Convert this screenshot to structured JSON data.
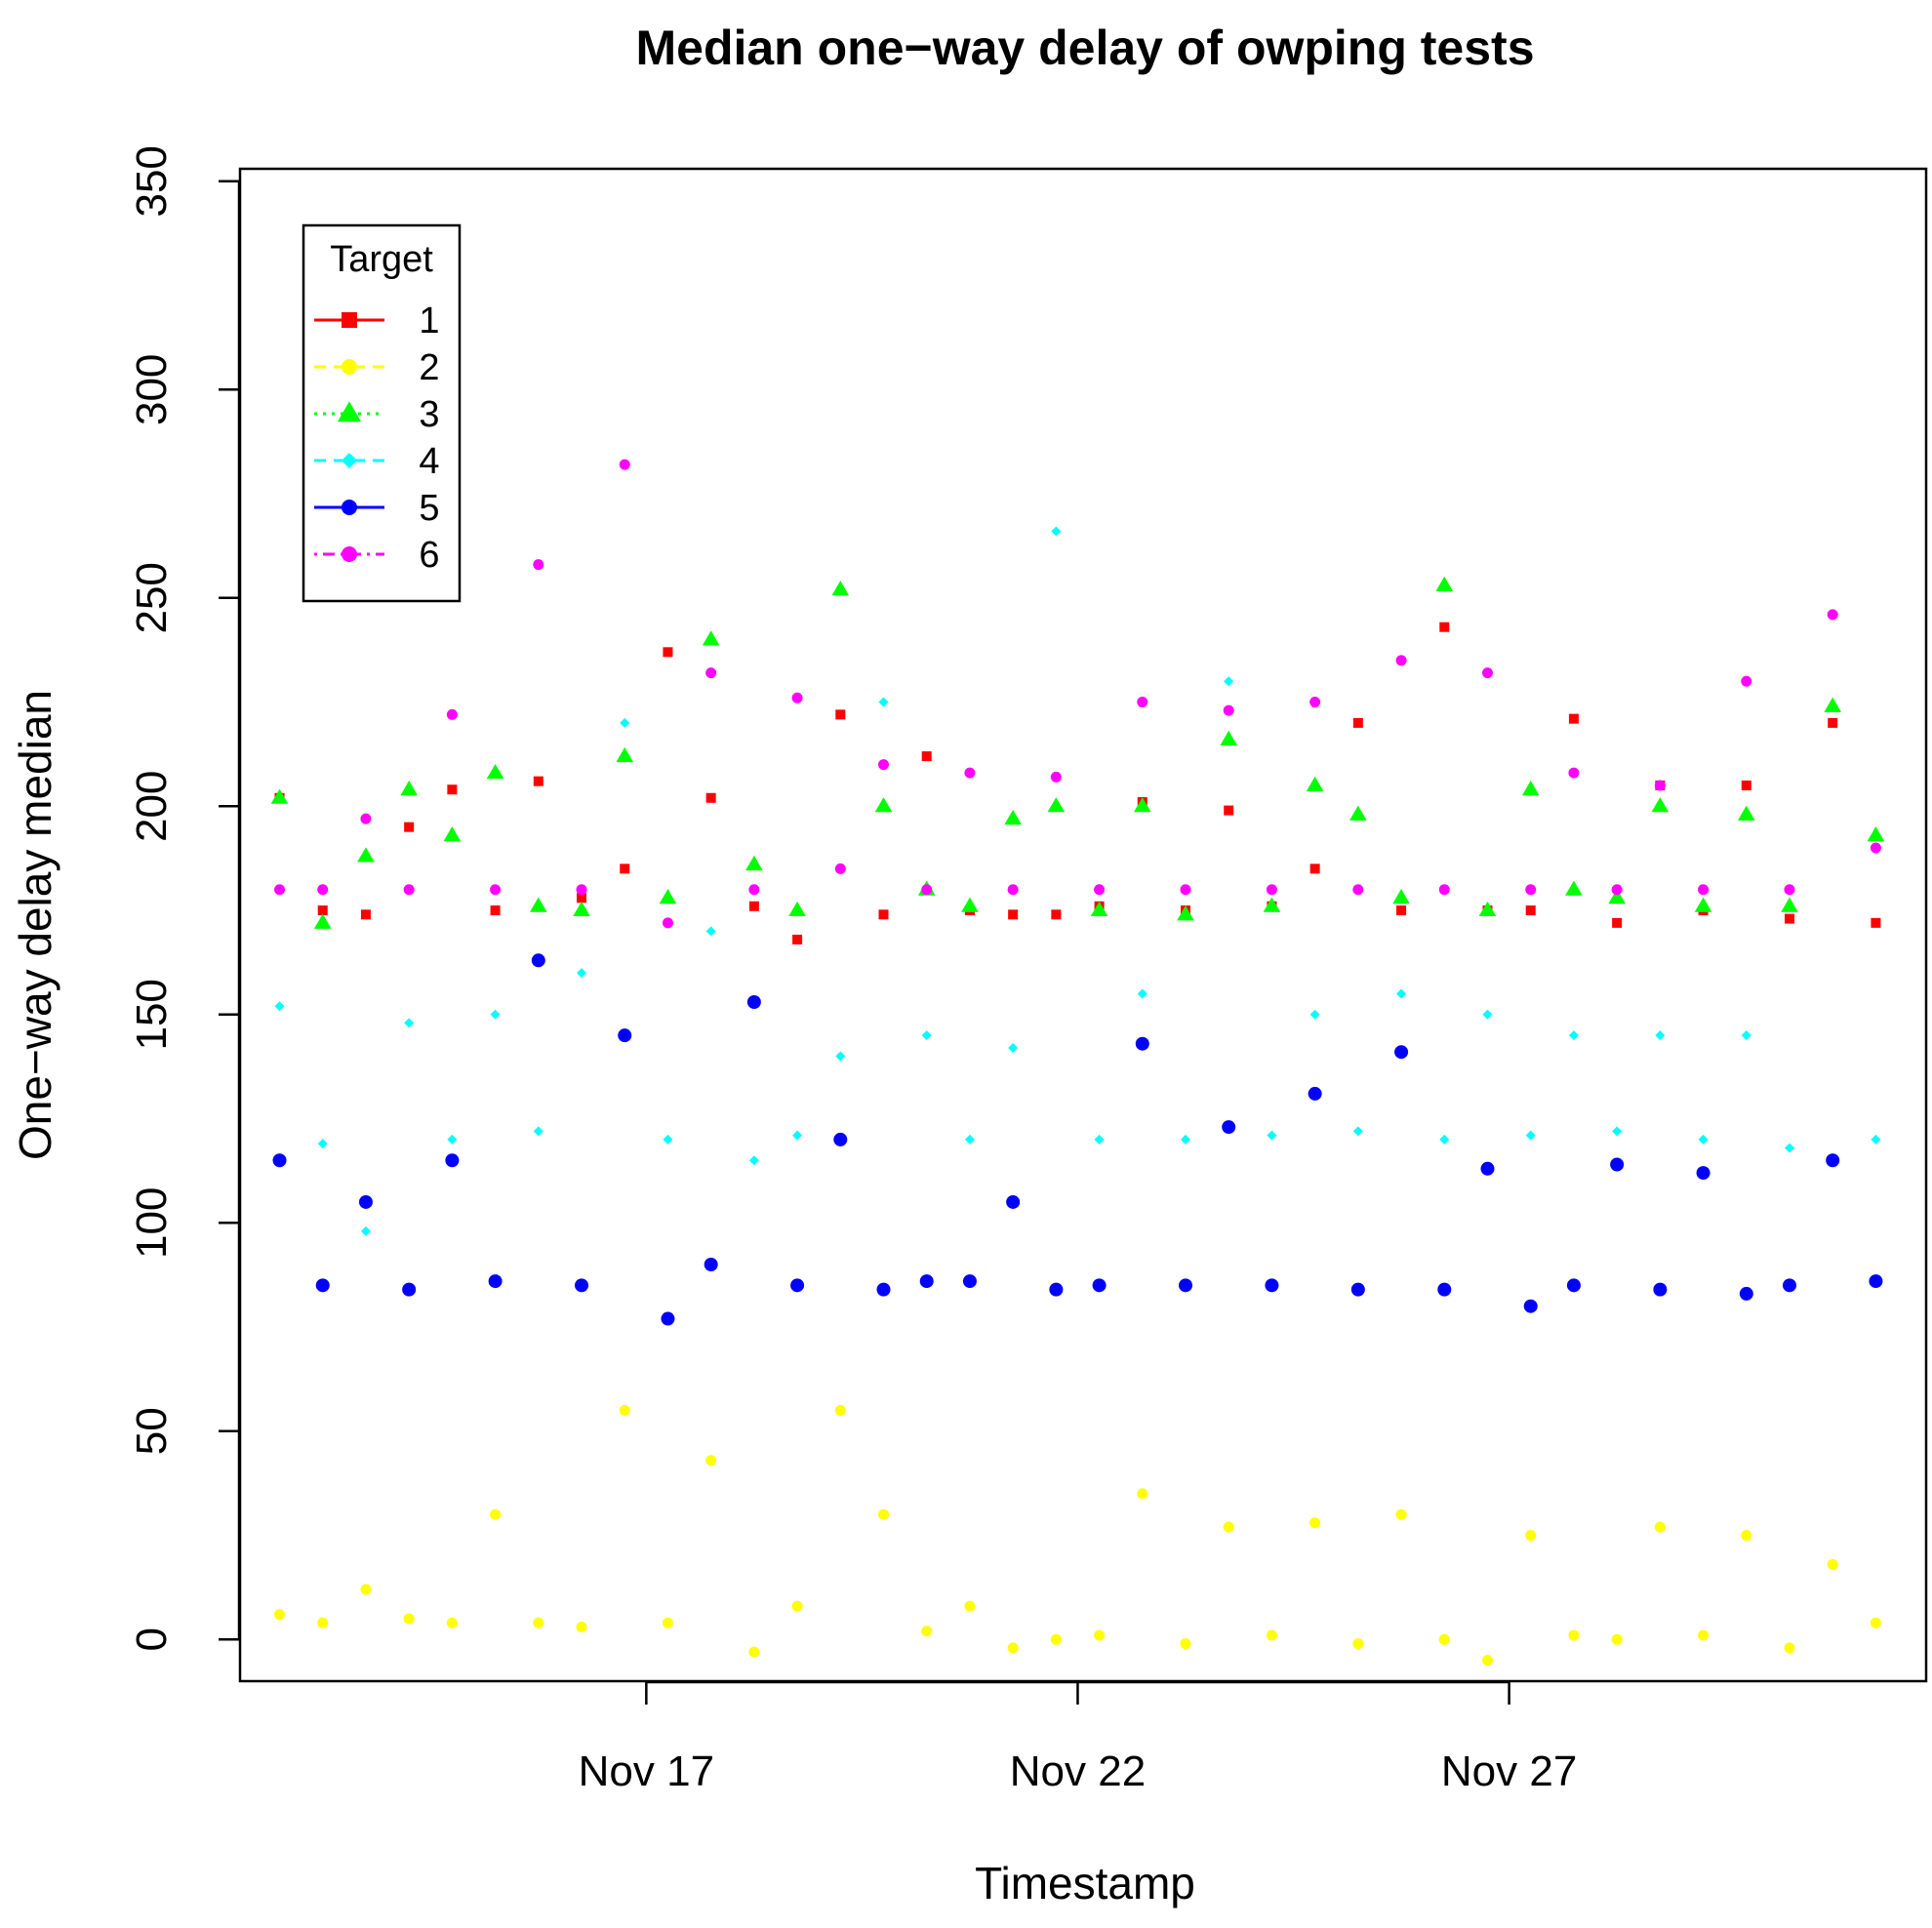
{
  "chart_data": {
    "type": "scatter",
    "title": "Median one−way delay of owping tests",
    "xlabel": "Timestamp",
    "ylabel": "One−way delay median",
    "xlim": [
      "2023-11-12T07:00",
      "2023-12-01T20:00"
    ],
    "ylim": [
      -10,
      353
    ],
    "x_ticks": [
      {
        "date": "2023-11-17",
        "label": "Nov 17"
      },
      {
        "date": "2023-11-22",
        "label": "Nov 22"
      },
      {
        "date": "2023-11-27",
        "label": "Nov 27"
      }
    ],
    "y_ticks": [
      0,
      50,
      100,
      150,
      200,
      250,
      300,
      350
    ],
    "grid": false,
    "legend": {
      "title": "Target",
      "position": "top-left",
      "entries": [
        "1",
        "2",
        "3",
        "4",
        "5",
        "6"
      ]
    },
    "series": [
      {
        "name": "1",
        "color": "#ff0000",
        "marker": "square",
        "line": "solid",
        "x": [
          "2023-11-12T18:00",
          "2023-11-13T06:00",
          "2023-11-13T18:00",
          "2023-11-14T06:00",
          "2023-11-14T18:00",
          "2023-11-15T06:00",
          "2023-11-15T18:00",
          "2023-11-16T06:00",
          "2023-11-16T18:00",
          "2023-11-17T06:00",
          "2023-11-17T18:00",
          "2023-11-18T06:00",
          "2023-11-18T18:00",
          "2023-11-19T06:00",
          "2023-11-19T18:00",
          "2023-11-20T06:00",
          "2023-11-20T18:00",
          "2023-11-21T06:00",
          "2023-11-21T18:00",
          "2023-11-22T06:00",
          "2023-11-22T18:00",
          "2023-11-23T06:00",
          "2023-11-23T18:00",
          "2023-11-24T06:00",
          "2023-11-24T18:00",
          "2023-11-25T06:00",
          "2023-11-25T18:00",
          "2023-11-26T06:00",
          "2023-11-26T18:00",
          "2023-11-27T06:00",
          "2023-11-27T18:00",
          "2023-11-28T06:00",
          "2023-11-28T18:00",
          "2023-11-29T06:00",
          "2023-11-29T18:00",
          "2023-11-30T06:00",
          "2023-11-30T18:00",
          "2023-12-01T06:00"
        ],
        "y": [
          202,
          175,
          174,
          195,
          204,
          175,
          206,
          178,
          185,
          237,
          202,
          176,
          168,
          222,
          174,
          212,
          175,
          174,
          174,
          176,
          201,
          175,
          199,
          176,
          185,
          220,
          175,
          243,
          175,
          175,
          221,
          172,
          205,
          175,
          205,
          173,
          220,
          172
        ]
      },
      {
        "name": "2",
        "color": "#ffff00",
        "marker": "circle",
        "line": "dashed",
        "x": [
          "2023-11-12T18:00",
          "2023-11-13T06:00",
          "2023-11-13T18:00",
          "2023-11-14T06:00",
          "2023-11-14T18:00",
          "2023-11-15T06:00",
          "2023-11-15T18:00",
          "2023-11-16T06:00",
          "2023-11-16T18:00",
          "2023-11-17T06:00",
          "2023-11-17T18:00",
          "2023-11-18T06:00",
          "2023-11-18T18:00",
          "2023-11-19T06:00",
          "2023-11-19T18:00",
          "2023-11-20T06:00",
          "2023-11-20T18:00",
          "2023-11-21T06:00",
          "2023-11-21T18:00",
          "2023-11-22T06:00",
          "2023-11-22T18:00",
          "2023-11-23T06:00",
          "2023-11-23T18:00",
          "2023-11-24T06:00",
          "2023-11-24T18:00",
          "2023-11-25T06:00",
          "2023-11-25T18:00",
          "2023-11-26T06:00",
          "2023-11-26T18:00",
          "2023-11-27T06:00",
          "2023-11-27T18:00",
          "2023-11-28T06:00",
          "2023-11-28T18:00",
          "2023-11-29T06:00",
          "2023-11-29T18:00",
          "2023-11-30T06:00",
          "2023-11-30T18:00",
          "2023-12-01T06:00"
        ],
        "y": [
          6,
          4,
          12,
          5,
          4,
          30,
          4,
          3,
          55,
          4,
          43,
          -3,
          8,
          55,
          30,
          2,
          8,
          -2,
          0,
          1,
          35,
          -1,
          27,
          1,
          28,
          -1,
          30,
          0,
          -5,
          25,
          1,
          0,
          27,
          1,
          25,
          -2,
          18,
          4
        ]
      },
      {
        "name": "3",
        "color": "#00ff00",
        "marker": "triangle",
        "line": "dotted",
        "x": [
          "2023-11-12T18:00",
          "2023-11-13T06:00",
          "2023-11-13T18:00",
          "2023-11-14T06:00",
          "2023-11-14T18:00",
          "2023-11-15T06:00",
          "2023-11-15T18:00",
          "2023-11-16T06:00",
          "2023-11-16T18:00",
          "2023-11-17T06:00",
          "2023-11-17T18:00",
          "2023-11-18T06:00",
          "2023-11-18T18:00",
          "2023-11-19T06:00",
          "2023-11-19T18:00",
          "2023-11-20T06:00",
          "2023-11-20T18:00",
          "2023-11-21T06:00",
          "2023-11-21T18:00",
          "2023-11-22T06:00",
          "2023-11-22T18:00",
          "2023-11-23T06:00",
          "2023-11-23T18:00",
          "2023-11-24T06:00",
          "2023-11-24T18:00",
          "2023-11-25T06:00",
          "2023-11-25T18:00",
          "2023-11-26T06:00",
          "2023-11-26T18:00",
          "2023-11-27T06:00",
          "2023-11-27T18:00",
          "2023-11-28T06:00",
          "2023-11-28T18:00",
          "2023-11-29T06:00",
          "2023-11-29T18:00",
          "2023-11-30T06:00",
          "2023-11-30T18:00",
          "2023-12-01T06:00"
        ],
        "y": [
          202,
          172,
          188,
          204,
          193,
          208,
          176,
          175,
          212,
          178,
          240,
          186,
          175,
          252,
          200,
          180,
          176,
          197,
          200,
          175,
          200,
          174,
          216,
          176,
          205,
          198,
          178,
          253,
          175,
          204,
          180,
          178,
          200,
          176,
          198,
          176,
          224,
          193
        ]
      },
      {
        "name": "4",
        "color": "#00ffff",
        "marker": "diamond",
        "line": "dashed",
        "x": [
          "2023-11-12T18:00",
          "2023-11-13T06:00",
          "2023-11-13T18:00",
          "2023-11-14T06:00",
          "2023-11-14T18:00",
          "2023-11-15T06:00",
          "2023-11-15T18:00",
          "2023-11-16T06:00",
          "2023-11-16T18:00",
          "2023-11-17T06:00",
          "2023-11-17T18:00",
          "2023-11-18T06:00",
          "2023-11-18T18:00",
          "2023-11-19T06:00",
          "2023-11-19T18:00",
          "2023-11-20T06:00",
          "2023-11-20T18:00",
          "2023-11-21T06:00",
          "2023-11-21T18:00",
          "2023-11-22T06:00",
          "2023-11-22T18:00",
          "2023-11-23T06:00",
          "2023-11-23T18:00",
          "2023-11-24T06:00",
          "2023-11-24T18:00",
          "2023-11-25T06:00",
          "2023-11-25T18:00",
          "2023-11-26T06:00",
          "2023-11-26T18:00",
          "2023-11-27T06:00",
          "2023-11-27T18:00",
          "2023-11-28T06:00",
          "2023-11-28T18:00",
          "2023-11-29T06:00",
          "2023-11-29T18:00",
          "2023-11-30T06:00",
          "2023-11-30T18:00",
          "2023-12-01T06:00"
        ],
        "y": [
          152,
          119,
          98,
          148,
          120,
          150,
          122,
          160,
          220,
          120,
          170,
          115,
          121,
          140,
          225,
          145,
          120,
          142,
          266,
          120,
          155,
          120,
          230,
          121,
          150,
          122,
          155,
          120,
          150,
          121,
          145,
          122,
          145,
          120,
          145,
          118,
          246,
          120
        ]
      },
      {
        "name": "5",
        "color": "#0000ff",
        "marker": "circle",
        "line": "solid",
        "x": [
          "2023-11-12T18:00",
          "2023-11-13T06:00",
          "2023-11-13T18:00",
          "2023-11-14T06:00",
          "2023-11-14T18:00",
          "2023-11-15T06:00",
          "2023-11-15T18:00",
          "2023-11-16T06:00",
          "2023-11-16T18:00",
          "2023-11-17T06:00",
          "2023-11-17T18:00",
          "2023-11-18T06:00",
          "2023-11-18T18:00",
          "2023-11-19T06:00",
          "2023-11-19T18:00",
          "2023-11-20T06:00",
          "2023-11-20T18:00",
          "2023-11-21T06:00",
          "2023-11-21T18:00",
          "2023-11-22T06:00",
          "2023-11-22T18:00",
          "2023-11-23T06:00",
          "2023-11-23T18:00",
          "2023-11-24T06:00",
          "2023-11-24T18:00",
          "2023-11-25T06:00",
          "2023-11-25T18:00",
          "2023-11-26T06:00",
          "2023-11-26T18:00",
          "2023-11-27T06:00",
          "2023-11-27T18:00",
          "2023-11-28T06:00",
          "2023-11-28T18:00",
          "2023-11-29T06:00",
          "2023-11-29T18:00",
          "2023-11-30T06:00",
          "2023-11-30T18:00",
          "2023-12-01T06:00"
        ],
        "y": [
          115,
          85,
          105,
          84,
          115,
          86,
          163,
          85,
          145,
          77,
          90,
          153,
          85,
          120,
          84,
          86,
          86,
          105,
          84,
          85,
          143,
          85,
          123,
          85,
          131,
          84,
          141,
          84,
          113,
          80,
          85,
          114,
          84,
          112,
          83,
          85,
          115,
          86
        ]
      },
      {
        "name": "6",
        "color": "#ff00ff",
        "marker": "circle",
        "line": "dotdash",
        "x": [
          "2023-11-12T18:00",
          "2023-11-13T06:00",
          "2023-11-13T18:00",
          "2023-11-14T06:00",
          "2023-11-14T18:00",
          "2023-11-15T06:00",
          "2023-11-15T18:00",
          "2023-11-16T06:00",
          "2023-11-16T18:00",
          "2023-11-17T06:00",
          "2023-11-17T18:00",
          "2023-11-18T06:00",
          "2023-11-18T18:00",
          "2023-11-19T06:00",
          "2023-11-19T18:00",
          "2023-11-20T06:00",
          "2023-11-20T18:00",
          "2023-11-21T06:00",
          "2023-11-21T18:00",
          "2023-11-22T06:00",
          "2023-11-22T18:00",
          "2023-11-23T06:00",
          "2023-11-23T18:00",
          "2023-11-24T06:00",
          "2023-11-24T18:00",
          "2023-11-25T06:00",
          "2023-11-25T18:00",
          "2023-11-26T06:00",
          "2023-11-26T18:00",
          "2023-11-27T06:00",
          "2023-11-27T18:00",
          "2023-11-28T06:00",
          "2023-11-28T18:00",
          "2023-11-29T06:00",
          "2023-11-29T18:00",
          "2023-11-30T06:00",
          "2023-11-30T18:00",
          "2023-12-01T06:00"
        ],
        "y": [
          180,
          180,
          197,
          180,
          222,
          180,
          258,
          180,
          282,
          172,
          232,
          180,
          226,
          185,
          210,
          180,
          208,
          180,
          207,
          180,
          225,
          180,
          223,
          180,
          225,
          180,
          235,
          180,
          232,
          180,
          208,
          180,
          205,
          180,
          230,
          180,
          246,
          190
        ]
      }
    ]
  }
}
